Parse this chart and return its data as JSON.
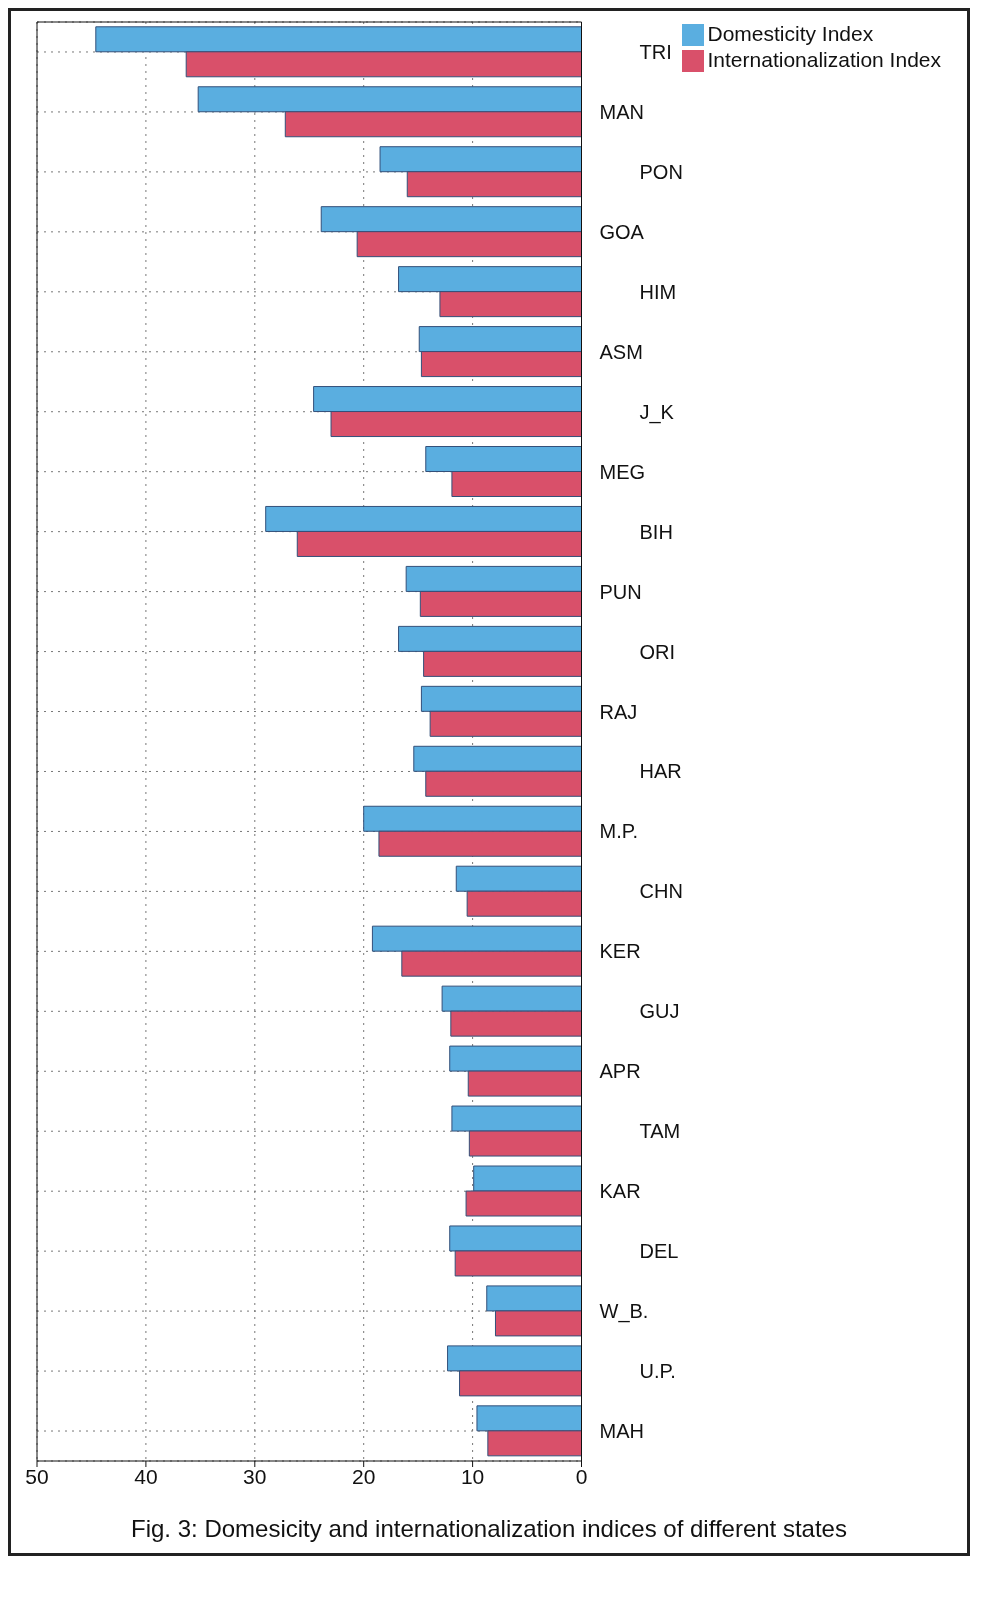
{
  "chart_data": {
    "type": "bar",
    "orientation": "horizontal",
    "categories": [
      "TRI",
      "MAN",
      "PON",
      "GOA",
      "HIM",
      "ASM",
      "J_K",
      "MEG",
      "BIH",
      "PUN",
      "ORI",
      "RAJ",
      "HAR",
      "M.P.",
      "CHN",
      "KER",
      "GUJ",
      "APR",
      "TAM",
      "KAR",
      "DEL",
      "W_B.",
      "U.P.",
      "MAH"
    ],
    "series": [
      {
        "name": "Domesticity Index",
        "color": "#5aaee0",
        "values": [
          44.6,
          35.2,
          18.5,
          23.9,
          16.8,
          14.9,
          24.6,
          14.3,
          29.0,
          16.1,
          16.8,
          14.7,
          15.4,
          20.0,
          11.5,
          19.2,
          12.8,
          12.1,
          11.9,
          9.9,
          12.1,
          8.7,
          12.3,
          9.6
        ]
      },
      {
        "name": "Internationalization Index",
        "color": "#d9506a",
        "values": [
          36.3,
          27.2,
          16.0,
          20.6,
          13.0,
          14.7,
          23.0,
          11.9,
          26.1,
          14.8,
          14.5,
          13.9,
          14.3,
          18.6,
          10.5,
          16.5,
          12.0,
          10.4,
          10.3,
          10.6,
          11.6,
          7.9,
          11.2,
          8.6
        ]
      }
    ],
    "xlim": [
      50,
      0
    ],
    "xticks": [
      50,
      40,
      30,
      20,
      10,
      0
    ],
    "grid": true,
    "legend": "top right",
    "annotations": [
      "Fig. 3: Domesicity and internationalization indices of different states"
    ]
  }
}
